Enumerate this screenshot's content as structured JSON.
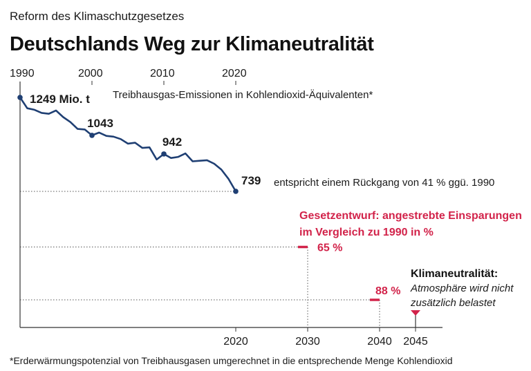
{
  "header": {
    "subtitle": "Reform des Klimaschutzgesetzes",
    "title": "Deutschlands Weg zur Klimaneutralität"
  },
  "footnote": "*Erderwärmungspotenzial von Treibhausgasen umgerechnet in die entsprechende Menge Kohlendioxid",
  "colors": {
    "line": "#1f3f73",
    "accent_red": "#d2234a",
    "axis": "#333333",
    "dotted": "#555555"
  },
  "chart_data": {
    "type": "line",
    "title": "Treibhausgas-Emissionen in Kohlendioxid-Äquivalenten*",
    "unit": "Mio. t",
    "xlim": [
      1990,
      2050
    ],
    "ylim": [
      0,
      1249
    ],
    "top_ticks": [
      "1990",
      "2000",
      "2010",
      "2020"
    ],
    "bottom_ticks": [
      "2020",
      "2030",
      "2040",
      "2045"
    ],
    "series": [
      {
        "name": "Treibhausgas-Emissionen",
        "x": [
          1990,
          1991,
          1992,
          1993,
          1994,
          1995,
          1996,
          1997,
          1998,
          1999,
          2000,
          2001,
          2002,
          2003,
          2004,
          2005,
          2006,
          2007,
          2008,
          2009,
          2010,
          2011,
          2012,
          2013,
          2014,
          2015,
          2016,
          2017,
          2018,
          2019,
          2020
        ],
        "values": [
          1249,
          1190,
          1182,
          1165,
          1160,
          1178,
          1142,
          1115,
          1078,
          1075,
          1043,
          1058,
          1040,
          1036,
          1023,
          998,
          1003,
          975,
          978,
          912,
          942,
          920,
          926,
          945,
          902,
          905,
          908,
          889,
          857,
          806,
          739
        ]
      }
    ],
    "point_labels": [
      {
        "year": 1990,
        "value": 1249,
        "text": "1249 Mio. t"
      },
      {
        "year": 2000,
        "value": 1043,
        "text": "1043"
      },
      {
        "year": 2010,
        "value": 942,
        "text": "942"
      },
      {
        "year": 2020,
        "value": 739,
        "text": "739"
      }
    ],
    "annotation_739": "entspricht einem Rückgang von 41 % ggü. 1990",
    "targets": {
      "heading_line1": "Gesetzentwurf: angestrebte Einsparungen",
      "heading_line2": "im Vergleich zu 1990 in %",
      "items": [
        {
          "year": 2030,
          "reduction_percent": 65,
          "value": 437,
          "label": "65 %"
        },
        {
          "year": 2040,
          "reduction_percent": 88,
          "value": 150,
          "label": "88 %"
        }
      ]
    },
    "neutrality": {
      "year": 2045,
      "value": 0,
      "title": "Klimaneutralität:",
      "desc_line1": "Atmosphäre wird nicht",
      "desc_line2": "zusätzlich belastet"
    }
  }
}
